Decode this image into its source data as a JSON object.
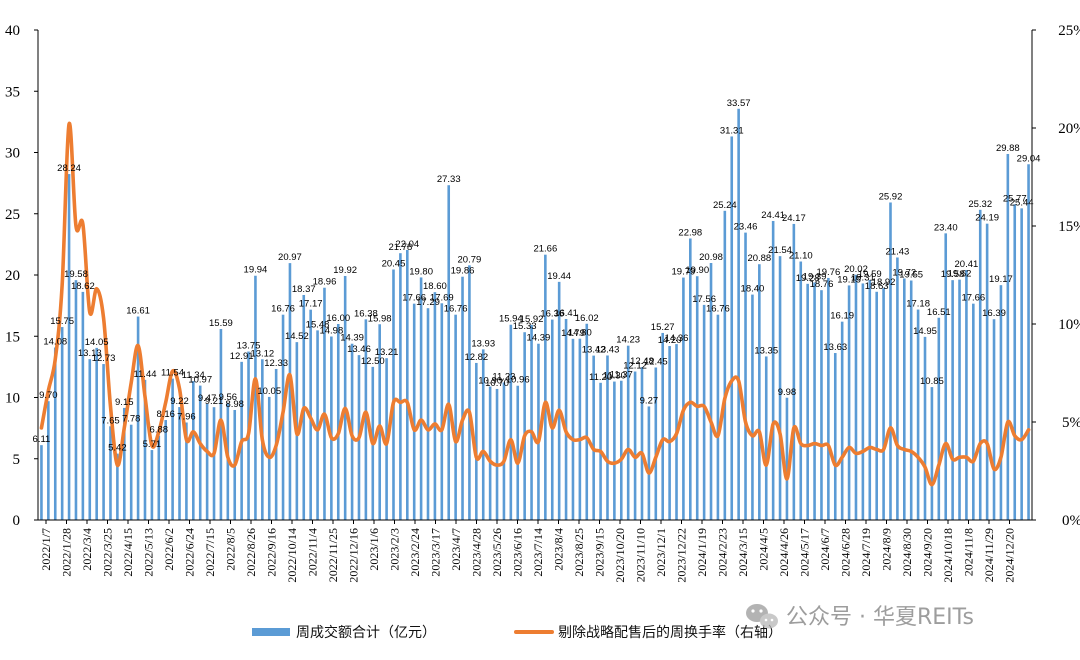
{
  "chart_data": {
    "type": "bar",
    "title": "",
    "xlabel": "",
    "ylabel": "",
    "ylim": [
      0,
      40
    ],
    "y2lim": [
      0,
      25
    ],
    "yticks": [
      0,
      5,
      10,
      15,
      20,
      25,
      30,
      35,
      40
    ],
    "y2ticks": [
      "0%",
      "5%",
      "10%",
      "15%",
      "20%",
      "25%"
    ],
    "grid": false,
    "legend_position": "bottom",
    "x_tick_labels": [
      "2022/1/7",
      "2022/1/28",
      "2022/3/4",
      "2022/3/25",
      "2022/4/15",
      "2022/5/13",
      "2022/6/2",
      "2022/6/24",
      "2022/7/15",
      "2022/8/5",
      "2022/8/26",
      "2022/9/16",
      "2022/10/14",
      "2022/11/4",
      "2022/11/25",
      "2022/12/16",
      "2023/1/6",
      "2023/2/3",
      "2023/2/24",
      "2023/3/17",
      "2023/4/7",
      "2023/4/28",
      "2023/5/26",
      "2023/6/16",
      "2023/7/14",
      "2023/8/4",
      "2023/8/25",
      "2023/9/15",
      "2023/10/20",
      "2023/11/10",
      "2023/12/1",
      "2023/12/22",
      "2024/1/19",
      "2024/2/23",
      "2024/3/15",
      "2024/4/5",
      "2024/4/26",
      "2024/5/17",
      "2024/6/7",
      "2024/6/28",
      "2024/7/19",
      "2024/8/9",
      "2024/8/30",
      "2024/9/20",
      "2024/10/18",
      "2024/11/8",
      "2024/11/29",
      "2024/12/20"
    ],
    "series": [
      {
        "name": "周成交额合计（亿元）",
        "type": "bar",
        "axis": "left",
        "color": "#5b9bd5",
        "values": [
          6.11,
          9.7,
          14.08,
          15.75,
          28.24,
          19.58,
          18.62,
          13.13,
          14.05,
          12.73,
          7.65,
          5.42,
          9.15,
          7.78,
          16.61,
          11.44,
          5.71,
          6.88,
          8.16,
          11.54,
          9.22,
          7.96,
          11.34,
          10.97,
          9.47,
          9.21,
          15.59,
          9.56,
          8.98,
          12.91,
          13.75,
          19.94,
          13.12,
          10.05,
          12.33,
          16.76,
          20.97,
          14.52,
          18.37,
          17.17,
          15.48,
          18.96,
          14.98,
          16.0,
          19.92,
          14.39,
          13.46,
          16.38,
          12.5,
          15.98,
          13.21,
          20.45,
          21.78,
          22.04,
          17.66,
          19.8,
          17.29,
          18.6,
          17.69,
          27.33,
          16.76,
          19.86,
          20.79,
          12.82,
          13.93,
          10.9,
          10.7,
          11.23,
          15.94,
          10.96,
          15.33,
          15.92,
          14.39,
          21.66,
          16.36,
          19.44,
          16.41,
          14.79,
          14.8,
          16.02,
          13.42,
          11.2,
          13.43,
          11.3,
          11.37,
          14.23,
          12.12,
          12.48,
          9.27,
          12.45,
          15.27,
          14.2,
          14.36,
          19.79,
          22.98,
          19.9,
          17.56,
          20.98,
          16.76,
          25.24,
          31.31,
          33.57,
          23.46,
          18.4,
          20.88,
          13.35,
          24.41,
          21.54,
          9.98,
          24.17,
          21.1,
          19.28,
          19.39,
          18.76,
          19.76,
          13.63,
          16.19,
          19.15,
          20.02,
          19.31,
          19.59,
          18.63,
          18.92,
          25.92,
          21.43,
          19.72,
          19.55,
          17.18,
          14.95,
          10.85,
          16.51,
          23.4,
          19.58,
          19.62,
          20.41,
          17.66,
          25.32,
          24.19,
          16.39,
          19.17,
          29.88,
          25.77,
          25.44,
          29.04
        ]
      },
      {
        "name": "剔除战略配售后的周换手率（右轴）",
        "type": "line",
        "axis": "right",
        "color": "#ed7d31",
        "values": [
          4.7,
          6.6,
          8.2,
          12.0,
          20.2,
          15.0,
          15.1,
          10.6,
          11.8,
          10.3,
          5.8,
          2.8,
          4.7,
          7.0,
          8.9,
          6.3,
          3.8,
          4.5,
          6.0,
          7.6,
          6.7,
          4.1,
          4.5,
          3.9,
          3.5,
          3.4,
          5.1,
          3.2,
          2.8,
          4.0,
          4.4,
          7.2,
          4.1,
          3.2,
          3.8,
          5.5,
          7.4,
          4.4,
          5.7,
          5.2,
          4.6,
          5.4,
          4.2,
          4.4,
          5.7,
          4.3,
          4.2,
          5.5,
          3.9,
          4.8,
          3.9,
          6.0,
          6.0,
          6.0,
          4.6,
          5.1,
          4.6,
          4.9,
          4.6,
          5.9,
          4.0,
          5.1,
          5.5,
          3.2,
          3.5,
          3.0,
          2.8,
          3.0,
          4.1,
          2.9,
          4.3,
          4.5,
          4.0,
          6.0,
          4.7,
          5.6,
          4.5,
          4.1,
          4.1,
          4.2,
          3.6,
          3.5,
          3.0,
          2.9,
          3.1,
          3.6,
          3.2,
          3.4,
          2.4,
          3.2,
          4.1,
          4.0,
          4.4,
          5.6,
          6.0,
          5.8,
          5.8,
          5.0,
          4.3,
          6.2,
          7.1,
          7.1,
          5.0,
          4.3,
          4.5,
          2.8,
          4.9,
          4.4,
          2.1,
          4.7,
          3.9,
          3.8,
          3.9,
          3.8,
          3.8,
          2.8,
          3.2,
          3.7,
          3.4,
          3.5,
          3.7,
          3.6,
          3.6,
          4.7,
          3.8,
          3.6,
          3.5,
          3.2,
          2.7,
          1.8,
          2.8,
          3.9,
          3.1,
          3.2,
          3.2,
          3.0,
          3.9,
          3.9,
          2.6,
          3.2,
          5.0,
          4.3,
          4.1,
          4.6
        ]
      }
    ]
  },
  "legend": {
    "bar_label": "周成交额合计（亿元）",
    "line_label": "剔除战略配售后的周换手率（右轴）"
  },
  "watermark": {
    "text": "公众号 · 华夏REITs",
    "icon": "wechat-icon"
  }
}
